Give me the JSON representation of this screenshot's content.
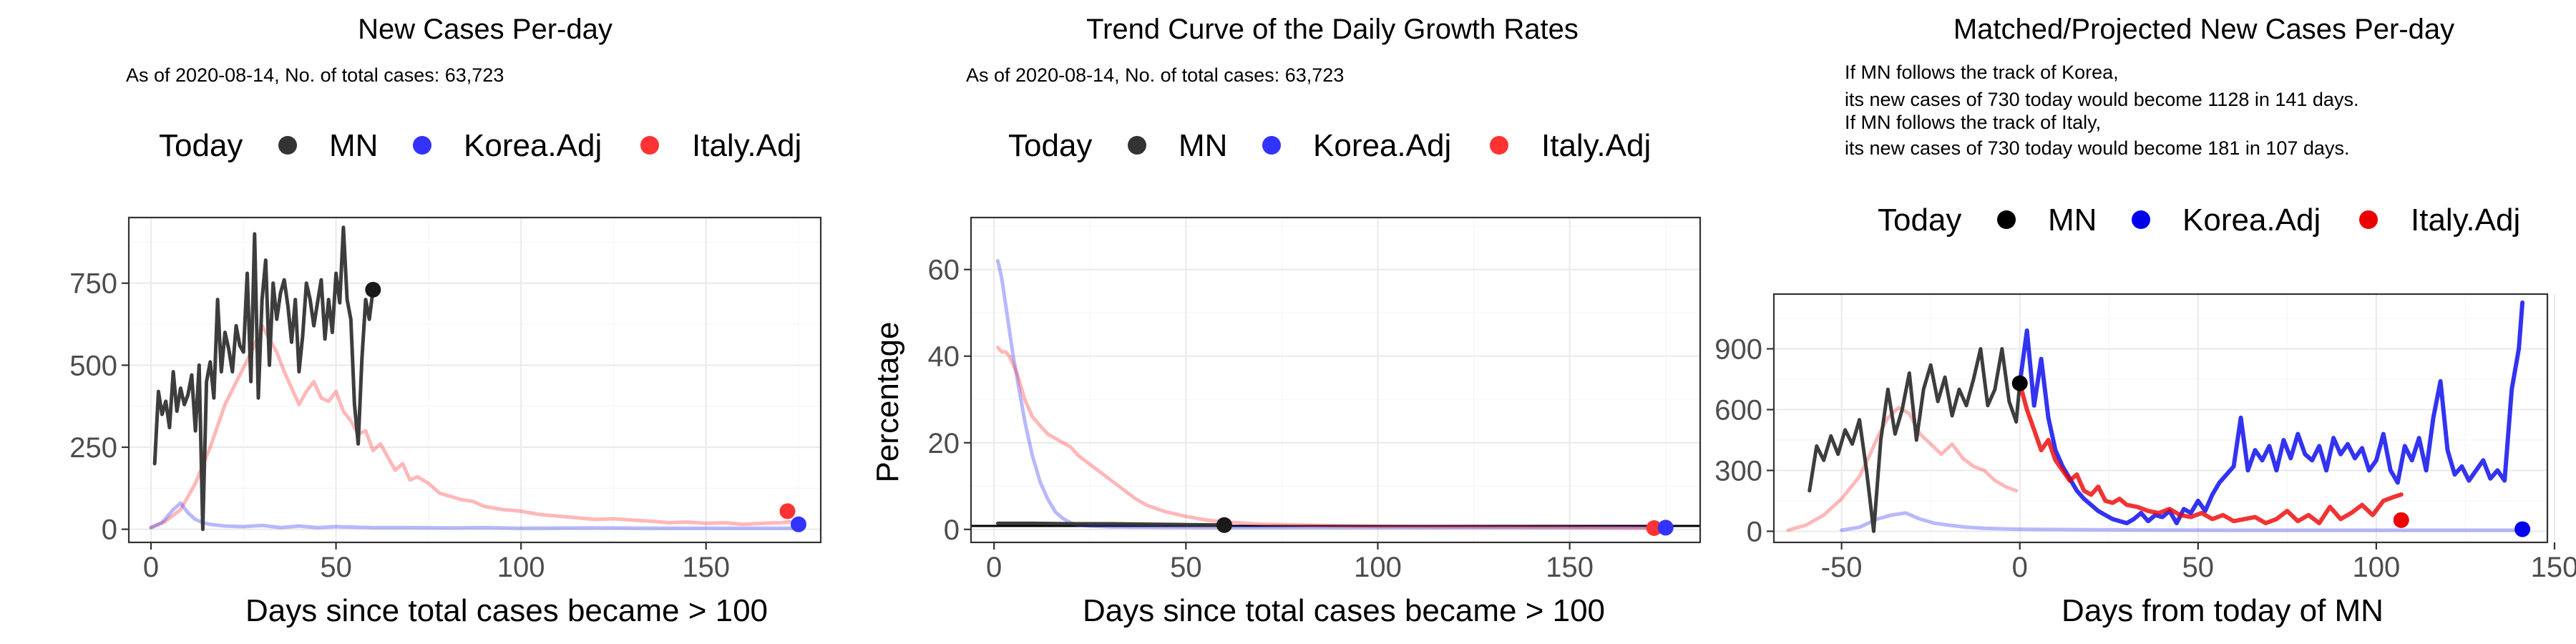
{
  "chart_data": [
    {
      "type": "line",
      "title": "New Cases Per-day",
      "subtitle_lines": [
        "As of 2020-08-14, No. of total cases: 63,723"
      ],
      "legend": {
        "title": "Today",
        "position": "top",
        "items": [
          {
            "label": "MN",
            "color": "#333333"
          },
          {
            "label": "Korea.Adj",
            "color": "#3333ff"
          },
          {
            "label": "Italy.Adj",
            "color": "#ff3333"
          }
        ]
      },
      "xlabel": "Days since total cases became > 100",
      "ylabel": "",
      "xlim": [
        -6,
        181
      ],
      "ylim": [
        -40,
        950
      ],
      "xticks": [
        0,
        50,
        100,
        150
      ],
      "xtick_labels": [
        "0",
        "50",
        "100",
        "150"
      ],
      "yticks": [
        0,
        250,
        500,
        750
      ],
      "ytick_labels": [
        "0",
        "250",
        "500",
        "750"
      ],
      "grid": true,
      "series": [
        {
          "name": "Italy.Adj",
          "color": "#ff3333",
          "opacity": 0.35,
          "width": 5,
          "x": [
            0,
            4,
            8,
            12,
            16,
            20,
            24,
            28,
            30,
            32,
            34,
            36,
            38,
            40,
            42,
            44,
            46,
            48,
            50,
            52,
            54,
            56,
            58,
            60,
            62,
            64,
            66,
            68,
            70,
            72,
            75,
            78,
            81,
            84,
            87,
            90,
            95,
            100,
            105,
            110,
            115,
            120,
            125,
            130,
            135,
            140,
            145,
            150,
            155,
            160,
            165,
            170,
            175
          ],
          "y": [
            5,
            25,
            60,
            140,
            250,
            380,
            470,
            560,
            620,
            580,
            540,
            480,
            430,
            380,
            420,
            450,
            400,
            390,
            420,
            360,
            330,
            290,
            300,
            240,
            260,
            220,
            180,
            200,
            150,
            160,
            140,
            110,
            100,
            90,
            85,
            70,
            60,
            55,
            45,
            40,
            35,
            30,
            32,
            28,
            25,
            20,
            22,
            18,
            20,
            15,
            18,
            20,
            25
          ]
        },
        {
          "name": "Korea.Adj",
          "color": "#3333ff",
          "opacity": 0.35,
          "width": 5,
          "x": [
            0,
            3,
            6,
            8,
            10,
            12,
            14,
            16,
            20,
            25,
            30,
            35,
            40,
            45,
            50,
            60,
            70,
            80,
            90,
            100,
            120,
            140,
            160,
            175
          ],
          "y": [
            5,
            20,
            60,
            80,
            50,
            30,
            20,
            15,
            10,
            8,
            12,
            5,
            10,
            5,
            8,
            5,
            5,
            4,
            5,
            3,
            4,
            3,
            3,
            3
          ]
        },
        {
          "name": "MN",
          "color": "#333333",
          "opacity": 0.95,
          "width": 5,
          "x": [
            1,
            2,
            3,
            4,
            5,
            6,
            7,
            8,
            9,
            10,
            11,
            12,
            13,
            14,
            15,
            16,
            17,
            18,
            19,
            20,
            21,
            22,
            23,
            24,
            25,
            26,
            27,
            28,
            29,
            30,
            31,
            32,
            33,
            34,
            35,
            36,
            37,
            38,
            39,
            40,
            41,
            42,
            43,
            44,
            45,
            46,
            47,
            48,
            49,
            50,
            51,
            52,
            53,
            54,
            55,
            56,
            57,
            58,
            59,
            60
          ],
          "y": [
            200,
            420,
            350,
            390,
            310,
            480,
            360,
            430,
            380,
            410,
            470,
            300,
            500,
            0,
            450,
            510,
            400,
            700,
            480,
            600,
            550,
            480,
            620,
            560,
            540,
            780,
            450,
            900,
            400,
            700,
            820,
            500,
            750,
            640,
            720,
            760,
            680,
            570,
            700,
            480,
            590,
            750,
            700,
            620,
            690,
            760,
            580,
            700,
            600,
            780,
            690,
            920,
            700,
            640,
            380,
            260,
            520,
            700,
            640,
            730
          ]
        }
      ],
      "today_points": [
        {
          "series": "MN",
          "x": 60,
          "y": 730,
          "color": "#1a1a1a"
        },
        {
          "series": "Italy.Adj",
          "x": 172,
          "y": 55,
          "color": "#ff3333"
        },
        {
          "series": "Korea.Adj",
          "x": 175,
          "y": 15,
          "color": "#3333ff"
        }
      ]
    },
    {
      "type": "line",
      "title": "Trend Curve of the Daily Growth Rates",
      "subtitle_lines": [
        "As of 2020-08-14, No. of total cases: 63,723"
      ],
      "legend": {
        "title": "Today",
        "position": "top",
        "items": [
          {
            "label": "MN",
            "color": "#333333"
          },
          {
            "label": "Korea.Adj",
            "color": "#3333ff"
          },
          {
            "label": "Italy.Adj",
            "color": "#ff3333"
          }
        ]
      },
      "xlabel": "Days since total cases became > 100",
      "ylabel": "Percentage",
      "xlim": [
        -6,
        184
      ],
      "ylim": [
        -3,
        72
      ],
      "xticks": [
        0,
        50,
        100,
        150
      ],
      "xtick_labels": [
        "0",
        "50",
        "100",
        "150"
      ],
      "yticks": [
        0,
        20,
        40,
        60
      ],
      "ytick_labels": [
        "0",
        "20",
        "40",
        "60"
      ],
      "grid": true,
      "hline": 0.8,
      "series": [
        {
          "name": "Korea.Adj",
          "color": "#3333ff",
          "opacity": 0.35,
          "width": 5,
          "x": [
            1,
            2,
            3,
            4,
            5,
            6,
            7,
            8,
            9,
            10,
            11,
            12,
            14,
            16,
            18,
            20,
            22,
            25,
            30,
            40,
            60,
            80,
            100,
            140,
            175
          ],
          "y": [
            62,
            58,
            52,
            46,
            40,
            35,
            30,
            25,
            21,
            17,
            14,
            11,
            7,
            4,
            2.5,
            1.5,
            1,
            0.8,
            0.6,
            0.5,
            0.4,
            0.4,
            0.4,
            0.4,
            0.4
          ]
        },
        {
          "name": "Italy.Adj",
          "color": "#ff3333",
          "opacity": 0.35,
          "width": 5,
          "x": [
            1,
            2,
            3,
            4,
            5,
            6,
            7,
            8,
            9,
            10,
            12,
            14,
            16,
            18,
            20,
            22,
            25,
            28,
            31,
            34,
            37,
            40,
            45,
            50,
            55,
            60,
            70,
            80,
            100,
            140,
            172
          ],
          "y": [
            42,
            41,
            41,
            40,
            38,
            36,
            33,
            30,
            28,
            26,
            24,
            22,
            21,
            20,
            19,
            17,
            15,
            13,
            11,
            9,
            7,
            5.5,
            4,
            3,
            2.2,
            1.7,
            1.2,
            1,
            0.7,
            0.5,
            0.3
          ]
        },
        {
          "name": "MN",
          "color": "#333333",
          "opacity": 0.95,
          "width": 5,
          "x": [
            1,
            10,
            20,
            30,
            40,
            50,
            60
          ],
          "y": [
            1.4,
            1.4,
            1.3,
            1.3,
            1.2,
            1.1,
            1.0
          ]
        }
      ],
      "today_points": [
        {
          "series": "MN",
          "x": 60,
          "y": 1.0,
          "color": "#1a1a1a"
        },
        {
          "series": "Italy.Adj",
          "x": 172,
          "y": 0.3,
          "color": "#ff3333"
        },
        {
          "series": "Korea.Adj",
          "x": 175,
          "y": 0.4,
          "color": "#3333ff"
        }
      ]
    },
    {
      "type": "line",
      "title": "Matched/Projected New Cases Per-day",
      "subtitle_lines": [
        "If MN follows the track of Korea,",
        "its new cases of 730 today would become 1128 in 141 days.",
        "If MN follows the track of Italy,",
        "its new cases of 730 today would become 181 in 107 days."
      ],
      "legend": {
        "title": "Today",
        "position": "top",
        "items": [
          {
            "label": "MN",
            "color": "#000000"
          },
          {
            "label": "Korea.Adj",
            "color": "#0000ee"
          },
          {
            "label": "Italy.Adj",
            "color": "#ee0000"
          }
        ]
      },
      "xlabel": "Days from today of MN",
      "ylabel": "",
      "xlim": [
        -69,
        148
      ],
      "ylim": [
        -55,
        1170
      ],
      "xticks": [
        -50,
        0,
        50,
        100,
        150
      ],
      "xtick_labels": [
        "-50",
        "0",
        "50",
        "100",
        "150"
      ],
      "yticks": [
        0,
        300,
        600,
        900
      ],
      "ytick_labels": [
        "0",
        "300",
        "600",
        "900"
      ],
      "grid": true,
      "series": [
        {
          "name": "Italy.Adj (matched history)",
          "color": "#ff3333",
          "opacity": 0.35,
          "width": 5,
          "x": [
            -65,
            -60,
            -55,
            -50,
            -45,
            -42,
            -40,
            -37,
            -34,
            -31,
            -28,
            -25,
            -22,
            -19,
            -16,
            -13,
            -10,
            -7,
            -4,
            -1
          ],
          "y": [
            5,
            30,
            80,
            160,
            270,
            380,
            460,
            560,
            610,
            580,
            480,
            430,
            380,
            430,
            360,
            320,
            300,
            250,
            220,
            200
          ]
        },
        {
          "name": "Korea.Adj (matched history)",
          "color": "#3333ff",
          "opacity": 0.35,
          "width": 5,
          "x": [
            -50,
            -45,
            -40,
            -36,
            -32,
            -28,
            -24,
            -20,
            -15,
            -10,
            -5,
            0,
            20,
            40,
            60,
            80,
            100,
            120,
            140
          ],
          "y": [
            5,
            20,
            60,
            80,
            90,
            60,
            40,
            30,
            20,
            15,
            12,
            10,
            8,
            6,
            5,
            5,
            5,
            5,
            5
          ]
        },
        {
          "name": "MN",
          "color": "#333333",
          "opacity": 0.95,
          "width": 5,
          "x": [
            -59,
            -57,
            -55,
            -53,
            -51,
            -49,
            -47,
            -45,
            -43,
            -41,
            -39,
            -37,
            -35,
            -33,
            -31,
            -29,
            -27,
            -25,
            -23,
            -21,
            -19,
            -17,
            -15,
            -13,
            -11,
            -9,
            -7,
            -5,
            -3,
            -1,
            0
          ],
          "y": [
            200,
            420,
            350,
            470,
            380,
            500,
            430,
            550,
            300,
            0,
            450,
            700,
            480,
            600,
            780,
            450,
            700,
            820,
            640,
            760,
            570,
            700,
            620,
            750,
            900,
            620,
            700,
            900,
            640,
            540,
            730
          ]
        },
        {
          "name": "Korea.Adj (projection)",
          "color": "#0000ee",
          "opacity": 0.8,
          "width": 6,
          "x": [
            0,
            2,
            4,
            6,
            8,
            10,
            12,
            14,
            16,
            18,
            20,
            22,
            24,
            26,
            28,
            30,
            32,
            34,
            36,
            38,
            40,
            42,
            44,
            46,
            48,
            50,
            52,
            54,
            56,
            58,
            60,
            62,
            64,
            66,
            68,
            70,
            72,
            74,
            76,
            78,
            80,
            82,
            84,
            86,
            88,
            90,
            92,
            94,
            96,
            98,
            100,
            102,
            104,
            106,
            108,
            110,
            112,
            114,
            116,
            118,
            120,
            122,
            124,
            126,
            128,
            130,
            132,
            134,
            136,
            138,
            140,
            141
          ],
          "y": [
            730,
            990,
            620,
            850,
            560,
            400,
            320,
            260,
            200,
            160,
            130,
            100,
            80,
            60,
            50,
            40,
            60,
            90,
            50,
            80,
            70,
            100,
            40,
            110,
            90,
            150,
            100,
            180,
            240,
            280,
            320,
            560,
            300,
            400,
            350,
            420,
            300,
            450,
            360,
            480,
            380,
            350,
            420,
            300,
            460,
            380,
            430,
            360,
            410,
            300,
            350,
            480,
            300,
            240,
            420,
            350,
            460,
            300,
            560,
            740,
            400,
            280,
            320,
            250,
            300,
            350,
            260,
            300,
            250,
            700,
            900,
            1128
          ]
        },
        {
          "name": "Italy.Adj (projection)",
          "color": "#ee0000",
          "opacity": 0.8,
          "width": 6,
          "x": [
            0,
            2,
            4,
            6,
            8,
            10,
            12,
            14,
            16,
            18,
            20,
            22,
            24,
            26,
            28,
            30,
            33,
            36,
            39,
            42,
            45,
            48,
            51,
            54,
            57,
            60,
            63,
            66,
            69,
            72,
            75,
            78,
            81,
            84,
            87,
            90,
            93,
            96,
            99,
            102,
            105,
            107
          ],
          "y": [
            730,
            600,
            500,
            400,
            450,
            350,
            300,
            250,
            280,
            200,
            180,
            220,
            150,
            140,
            160,
            130,
            120,
            100,
            90,
            110,
            80,
            70,
            90,
            60,
            80,
            50,
            60,
            70,
            40,
            60,
            100,
            50,
            80,
            40,
            120,
            60,
            90,
            130,
            80,
            150,
            170,
            181
          ]
        }
      ],
      "today_points": [
        {
          "series": "MN",
          "x": 0,
          "y": 730,
          "color": "#000000"
        },
        {
          "series": "Italy.Adj",
          "x": 107,
          "y": 55,
          "color": "#ee0000"
        },
        {
          "series": "Korea.Adj",
          "x": 141,
          "y": 10,
          "color": "#0000ee"
        }
      ]
    }
  ]
}
